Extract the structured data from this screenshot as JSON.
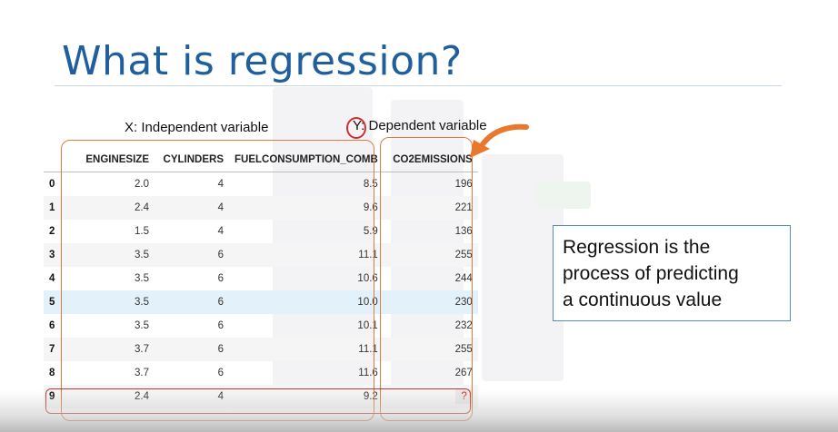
{
  "slide": {
    "title": "What is regression?",
    "x_caption": "X: Independent variable",
    "y_caption": "Y: Dependent variable",
    "callout_lines": [
      "Regression is the",
      "process of predicting",
      "a continuous value"
    ]
  },
  "table": {
    "columns": [
      "ENGINESIZE",
      "CYLINDERS",
      "FUELCONSUMPTION_COMB",
      "CO2EMISSIONS"
    ],
    "rows": [
      {
        "index": "0",
        "cells": [
          "2.0",
          "4",
          "8.5",
          "196"
        ]
      },
      {
        "index": "1",
        "cells": [
          "2.4",
          "4",
          "9.6",
          "221"
        ]
      },
      {
        "index": "2",
        "cells": [
          "1.5",
          "4",
          "5.9",
          "136"
        ]
      },
      {
        "index": "3",
        "cells": [
          "3.5",
          "6",
          "11.1",
          "255"
        ]
      },
      {
        "index": "4",
        "cells": [
          "3.5",
          "6",
          "10.6",
          "244"
        ]
      },
      {
        "index": "5",
        "cells": [
          "3.5",
          "6",
          "10.0",
          "230"
        ]
      },
      {
        "index": "6",
        "cells": [
          "3.5",
          "6",
          "10.1",
          "232"
        ]
      },
      {
        "index": "7",
        "cells": [
          "3.7",
          "6",
          "11.1",
          "255"
        ]
      },
      {
        "index": "8",
        "cells": [
          "3.7",
          "6",
          "11.6",
          "267"
        ]
      },
      {
        "index": "9",
        "cells": [
          "2.4",
          "4",
          "9.2",
          "?"
        ]
      }
    ]
  },
  "colors": {
    "title": "#1f5f9e",
    "highlight_box": "#e07a3f",
    "question_mark": "#d32f2f",
    "arrow": "#e9782f"
  }
}
